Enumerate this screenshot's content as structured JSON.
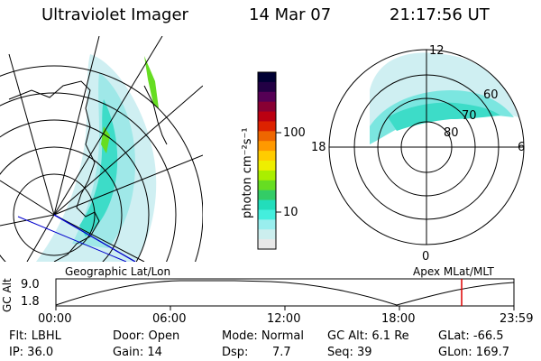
{
  "header": {
    "title": "Ultraviolet Imager",
    "date": "14 Mar 07",
    "time": "21:17:56 UT"
  },
  "geo_panel": {
    "label": "Geographic Lat/Lon"
  },
  "polar_panel": {
    "label": "Apex MLat/MLT",
    "mlt_labels": [
      "12",
      "18",
      "6",
      "0"
    ],
    "mlat_labels": [
      "60",
      "70",
      "80"
    ]
  },
  "colorbar": {
    "unit_label": "photon cm⁻²s⁻¹",
    "ticks": [
      "100",
      "10"
    ],
    "colors": [
      "#000033",
      "#220044",
      "#550055",
      "#880033",
      "#bb0011",
      "#dd2200",
      "#ee6600",
      "#ff9900",
      "#ffcc00",
      "#eeee00",
      "#aaee00",
      "#66dd22",
      "#33cc66",
      "#22ddbb",
      "#44eedd",
      "#99eeee",
      "#cceeee",
      "#e8e8e8"
    ]
  },
  "altitude_plot": {
    "ylabel": "GC Alt",
    "yticks": [
      "9.0",
      "1.8"
    ],
    "xticks": [
      "00:00",
      "06:00",
      "12:00",
      "18:00",
      "23:59"
    ],
    "marker_color": "#dd0000"
  },
  "status": {
    "flt": "Flt: LBHL",
    "ip": "IP: 36.0",
    "door": "Door: Open",
    "gain": "Gain: 14",
    "mode": "Mode: Normal",
    "dsp_label": "Dsp:",
    "dsp_value": "7.7",
    "gc_alt": "GC Alt: 6.1 Re",
    "seq": "Seq: 39",
    "glat": "GLat: -66.5",
    "glon": "GLon: 169.7"
  }
}
